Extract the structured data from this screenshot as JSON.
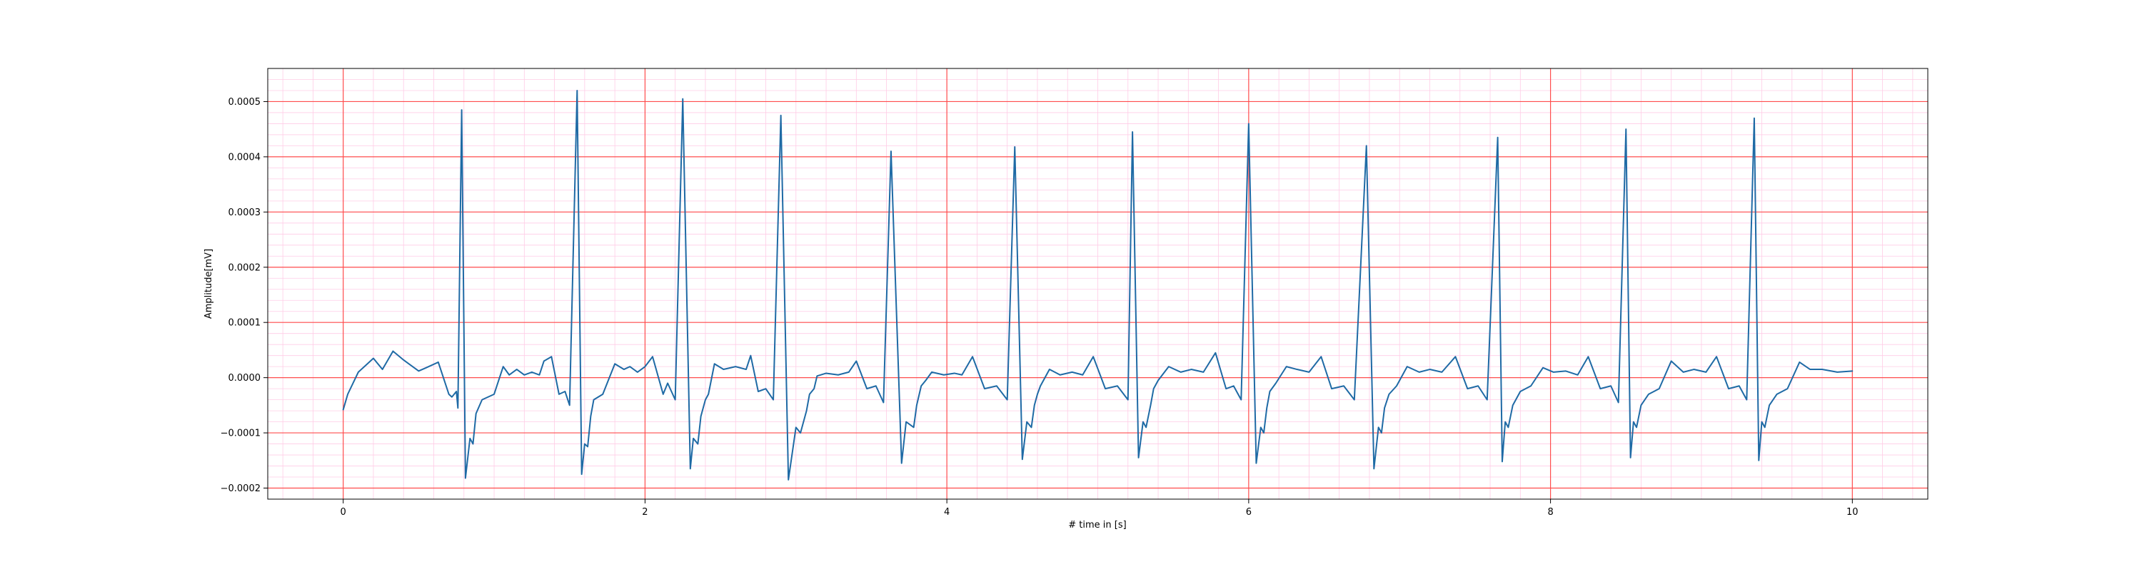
{
  "chart_data": {
    "type": "line",
    "title": "",
    "xlabel": "# time in [s]",
    "ylabel": "Amplitude[mV]",
    "xlim": [
      -0.5,
      10.5
    ],
    "ylim": [
      -0.00022,
      0.00056
    ],
    "x_ticks": [
      0,
      2,
      4,
      6,
      8,
      10
    ],
    "x_tick_labels": [
      "0",
      "2",
      "4",
      "6",
      "8",
      "10"
    ],
    "y_ticks": [
      -0.0002,
      -0.0001,
      0.0,
      0.0001,
      0.0002,
      0.0003,
      0.0004,
      0.0005
    ],
    "y_tick_labels": [
      "−0.0002",
      "−0.0001",
      "0.0000",
      "0.0001",
      "0.0002",
      "0.0003",
      "0.0004",
      "0.0005"
    ],
    "grid": {
      "major": true,
      "minor": true,
      "major_color": "#ff4d4d",
      "minor_color": "#ffcce6",
      "x_minor_step": 0.2,
      "y_minor_step": 2e-05
    },
    "line_color": "#1f6aa5",
    "legend": "none",
    "series": [
      {
        "x": [
          0.0,
          0.03,
          0.1,
          0.2,
          0.26,
          0.33,
          0.4,
          0.47,
          0.5,
          0.55,
          0.63,
          0.7,
          0.72,
          0.75,
          0.76,
          0.785,
          0.81,
          0.84,
          0.86,
          0.88,
          0.92,
          1.0,
          1.06,
          1.1,
          1.15,
          1.2,
          1.25,
          1.3,
          1.33,
          1.38,
          1.43,
          1.47,
          1.5,
          1.55,
          1.58,
          1.6,
          1.62,
          1.64,
          1.66,
          1.72,
          1.8,
          1.86,
          1.9,
          1.95,
          2.0,
          2.05,
          2.12,
          2.15,
          2.2,
          2.25,
          2.3,
          2.32,
          2.35,
          2.37,
          2.4,
          2.42,
          2.46,
          2.52,
          2.6,
          2.67,
          2.7,
          2.75,
          2.8,
          2.85,
          2.9,
          2.95,
          3.0,
          3.03,
          3.07,
          3.09,
          3.12,
          3.14,
          3.2,
          3.28,
          3.35,
          3.4,
          3.47,
          3.53,
          3.58,
          3.63,
          3.7,
          3.73,
          3.78,
          3.8,
          3.83,
          3.86,
          3.9,
          3.98,
          4.05,
          4.1,
          4.17,
          4.25,
          4.33,
          4.4,
          4.45,
          4.5,
          4.53,
          4.56,
          4.58,
          4.6,
          4.62,
          4.68,
          4.75,
          4.83,
          4.9,
          4.97,
          5.05,
          5.13,
          5.2,
          5.23,
          5.27,
          5.3,
          5.32,
          5.35,
          5.37,
          5.4,
          5.47,
          5.55,
          5.62,
          5.7,
          5.78,
          5.85,
          5.9,
          5.95,
          6.0,
          6.05,
          6.08,
          6.1,
          6.12,
          6.14,
          6.18,
          6.25,
          6.32,
          6.4,
          6.48,
          6.55,
          6.63,
          6.7,
          6.78,
          6.83,
          6.86,
          6.88,
          6.9,
          6.93,
          6.98,
          7.05,
          7.13,
          7.2,
          7.28,
          7.37,
          7.45,
          7.52,
          7.58,
          7.65,
          7.68,
          7.7,
          7.72,
          7.75,
          7.8,
          7.87,
          7.95,
          8.02,
          8.1,
          8.18,
          8.25,
          8.33,
          8.4,
          8.45,
          8.5,
          8.53,
          8.55,
          8.57,
          8.6,
          8.65,
          8.72,
          8.8,
          8.88,
          8.95,
          9.03,
          9.1,
          9.18,
          9.25,
          9.3,
          9.35,
          9.38,
          9.4,
          9.42,
          9.45,
          9.5,
          9.57,
          9.65,
          9.72,
          9.8,
          9.9,
          10.0
        ],
        "y": [
          -5.8e-05,
          -3e-05,
          1e-05,
          3.5e-05,
          1.5e-05,
          4.8e-05,
          3.2e-05,
          1.8e-05,
          1.2e-05,
          1.8e-05,
          2.8e-05,
          -3e-05,
          -3.5e-05,
          -2.5e-05,
          -5.5e-05,
          0.000485,
          -0.000182,
          -0.00011,
          -0.00012,
          -6.5e-05,
          -4e-05,
          -3e-05,
          2e-05,
          5e-06,
          1.5e-05,
          5e-06,
          1e-05,
          5e-06,
          3e-05,
          3.8e-05,
          -3e-05,
          -2.5e-05,
          -5e-05,
          0.00052,
          -0.000175,
          -0.00012,
          -0.000125,
          -7e-05,
          -4e-05,
          -3e-05,
          2.5e-05,
          1.5e-05,
          2e-05,
          1e-05,
          2e-05,
          3.8e-05,
          -3e-05,
          -1e-05,
          -4e-05,
          0.000505,
          -0.000165,
          -0.00011,
          -0.00012,
          -7e-05,
          -4e-05,
          -3e-05,
          2.5e-05,
          1.5e-05,
          2e-05,
          1.5e-05,
          4e-05,
          -2.5e-05,
          -2e-05,
          -4e-05,
          0.000475,
          -0.000185,
          -9e-05,
          -0.0001,
          -6e-05,
          -3e-05,
          -2e-05,
          3e-06,
          8e-06,
          5e-06,
          1e-05,
          3e-05,
          -2e-05,
          -1.5e-05,
          -4.5e-05,
          0.00041,
          -0.000155,
          -8e-05,
          -9e-05,
          -5e-05,
          -1.5e-05,
          -5e-06,
          1e-05,
          5e-06,
          8e-06,
          5e-06,
          3.8e-05,
          -2e-05,
          -1.5e-05,
          -4e-05,
          0.000418,
          -0.000148,
          -8e-05,
          -9e-05,
          -5e-05,
          -3e-05,
          -1.5e-05,
          1.5e-05,
          5e-06,
          1e-05,
          5e-06,
          3.8e-05,
          -2e-05,
          -1.5e-05,
          -4e-05,
          0.000445,
          -0.000145,
          -8e-05,
          -9e-05,
          -5e-05,
          -2e-05,
          -5e-06,
          2e-05,
          1e-05,
          1.5e-05,
          1e-05,
          4.5e-05,
          -2e-05,
          -1.5e-05,
          -4e-05,
          0.00046,
          -0.000155,
          -9e-05,
          -0.0001,
          -5.5e-05,
          -2.5e-05,
          -1e-05,
          2e-05,
          1.5e-05,
          1e-05,
          3.8e-05,
          -2e-05,
          -1.5e-05,
          -4e-05,
          0.00042,
          -0.000165,
          -9e-05,
          -0.0001,
          -5.5e-05,
          -3e-05,
          -1.5e-05,
          2e-05,
          1e-05,
          1.5e-05,
          1e-05,
          3.8e-05,
          -2e-05,
          -1.5e-05,
          -4e-05,
          0.000435,
          -0.000152,
          -8e-05,
          -9e-05,
          -5e-05,
          -2.5e-05,
          -1.5e-05,
          1.8e-05,
          1e-05,
          1.2e-05,
          5e-06,
          3.8e-05,
          -2e-05,
          -1.5e-05,
          -4.5e-05,
          0.00045,
          -0.000145,
          -8e-05,
          -9e-05,
          -5e-05,
          -3e-05,
          -2e-05,
          3e-05,
          1e-05,
          1.5e-05,
          1e-05,
          3.8e-05,
          -2e-05,
          -1.5e-05,
          -4e-05,
          0.00047,
          -0.00015,
          -8e-05,
          -9e-05,
          -5e-05,
          -3e-05,
          -2e-05,
          2.8e-05,
          1.5e-05,
          1.5e-05,
          1e-05,
          1.2e-05
        ]
      }
    ]
  }
}
